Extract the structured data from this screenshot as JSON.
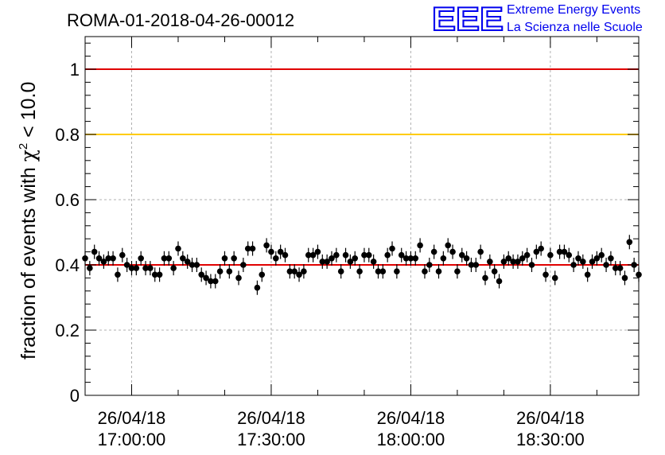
{
  "chart_data": {
    "type": "scatter",
    "title": "ROMA-01-2018-04-26-00012",
    "ylabel_prefix": "fraction of events with ",
    "ylabel_chi": "χ",
    "ylabel_sup": "2",
    "ylabel_suffix": " < 10.0",
    "xlabel": "",
    "ylim": [
      0,
      1.1
    ],
    "yticks": [
      0,
      0.2,
      0.4,
      0.6,
      0.8,
      1
    ],
    "ytick_labels": [
      "0",
      "0.2",
      "0.4",
      "0.6",
      "0.8",
      "1"
    ],
    "xlim": [
      "2018-04-26 16:50:00",
      "2018-04-26 18:49:00"
    ],
    "xticks": [
      {
        "date": "26/04/18",
        "time": "17:00:00"
      },
      {
        "date": "26/04/18",
        "time": "17:30:00"
      },
      {
        "date": "26/04/18",
        "time": "18:00:00"
      },
      {
        "date": "26/04/18",
        "time": "18:30:00"
      }
    ],
    "grid": true,
    "reference_lines": [
      {
        "y": 1.0,
        "color": "#e00000"
      },
      {
        "y": 0.8,
        "color": "#ffcc00"
      },
      {
        "y": 0.4,
        "color": "#e00000"
      }
    ],
    "series": [
      {
        "color": "#000000",
        "x_start": "2018-04-26 16:50:00",
        "x_step_minutes": 1,
        "error": 0.022,
        "values": [
          0.42,
          0.39,
          0.44,
          0.42,
          0.41,
          0.42,
          0.42,
          0.37,
          0.43,
          0.4,
          0.39,
          0.39,
          0.42,
          0.39,
          0.39,
          0.37,
          0.37,
          0.42,
          0.42,
          0.39,
          0.45,
          0.42,
          0.41,
          0.4,
          0.4,
          0.37,
          0.36,
          0.35,
          0.35,
          0.38,
          0.42,
          0.38,
          0.42,
          0.36,
          0.4,
          0.45,
          0.45,
          0.33,
          0.37,
          0.46,
          0.44,
          0.42,
          0.44,
          0.43,
          0.38,
          0.38,
          0.37,
          0.38,
          0.43,
          0.43,
          0.44,
          0.41,
          0.41,
          0.42,
          0.43,
          0.38,
          0.43,
          0.41,
          0.42,
          0.38,
          0.43,
          0.43,
          0.41,
          0.38,
          0.38,
          0.43,
          0.45,
          0.38,
          0.43,
          0.42,
          0.42,
          0.42,
          0.46,
          0.38,
          0.4,
          0.44,
          0.38,
          0.42,
          0.46,
          0.44,
          0.38,
          0.43,
          0.42,
          0.4,
          0.4,
          0.44,
          0.36,
          0.41,
          0.38,
          0.35,
          0.41,
          0.42,
          0.41,
          0.41,
          0.42,
          0.43,
          0.4,
          0.44,
          0.45,
          0.37,
          0.43,
          0.36,
          0.44,
          0.44,
          0.43,
          0.4,
          0.42,
          0.41,
          0.37,
          0.41,
          0.42,
          0.43,
          0.4,
          0.42,
          0.39,
          0.39,
          0.36,
          0.47,
          0.4,
          0.37
        ]
      }
    ]
  },
  "logo": {
    "mark": "EEE",
    "line1": "Extreme Energy Events",
    "line2": "La Scienza nelle Scuole",
    "color": "#0000ee"
  }
}
